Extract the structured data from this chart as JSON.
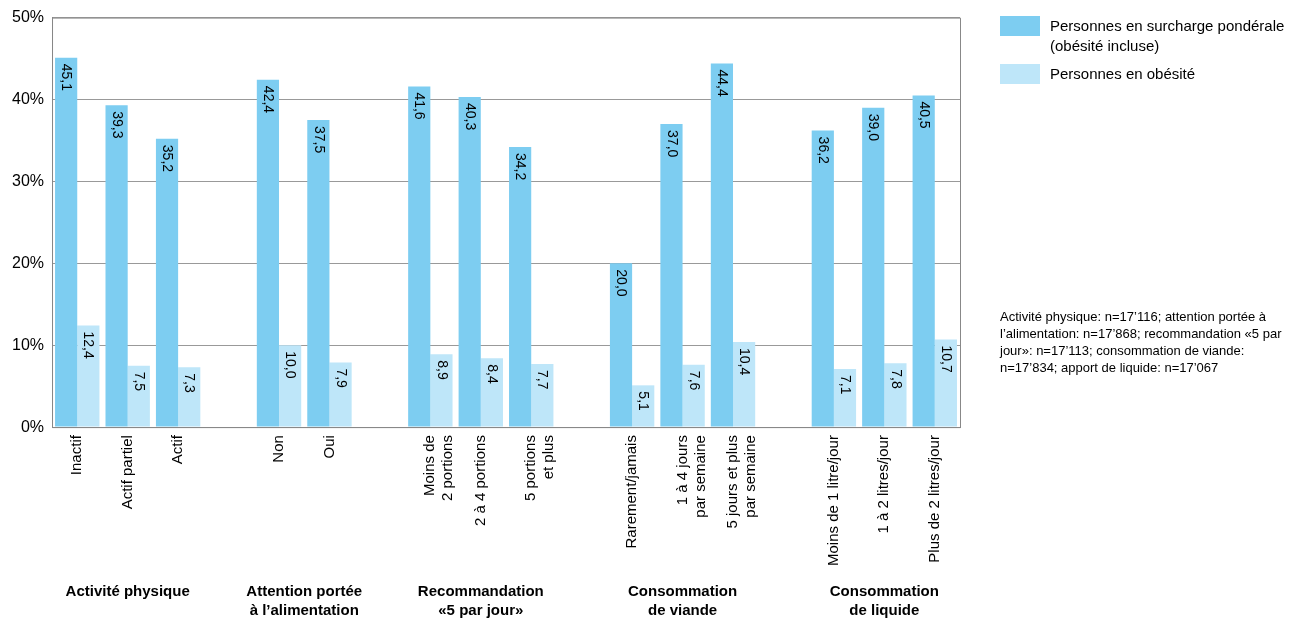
{
  "chart_data": {
    "type": "bar",
    "categories": [
      "Inactif",
      "Actif partiel",
      "Actif",
      null,
      "Non",
      "Oui",
      null,
      "Moins de\n2 portions",
      "2 à 4 portions",
      "5 portions\net plus",
      null,
      "Rarement/jamais",
      "1 à 4 jours\npar semaine",
      "5 jours et plus\npar semaine",
      null,
      "Moins de 1 litre/jour",
      "1 à 2 litres/jour",
      "Plus de 2 litres/jour"
    ],
    "series": [
      {
        "name": "Personnes en surcharge pondérale (obésité incluse)",
        "color": "#7dcdf1",
        "values": [
          45.1,
          39.3,
          35.2,
          null,
          42.4,
          37.5,
          null,
          41.6,
          40.3,
          34.2,
          null,
          20.0,
          37.0,
          44.4,
          null,
          36.2,
          39.0,
          40.5
        ],
        "value_labels": [
          "45,1",
          "39,3",
          "35,2",
          null,
          "42,4",
          "37,5",
          null,
          "41,6",
          "40,3",
          "34,2",
          null,
          "20,0",
          "37,0",
          "44,4",
          null,
          "36,2",
          "39,0",
          "40,5"
        ]
      },
      {
        "name": "Personnes en obésité",
        "color": "#bee6f9",
        "values": [
          12.4,
          7.5,
          7.3,
          null,
          10.0,
          7.9,
          null,
          8.9,
          8.4,
          7.7,
          null,
          5.1,
          7.6,
          10.4,
          null,
          7.1,
          7.8,
          10.7
        ],
        "value_labels": [
          "12,4",
          "7,5",
          "7,3",
          null,
          "10,0",
          "7,9",
          null,
          "8,9",
          "8,4",
          "7,7",
          null,
          "5,1",
          "7,6",
          "10,4",
          null,
          "7,1",
          "7,8",
          "10,7"
        ]
      }
    ],
    "ylim": [
      0,
      50
    ],
    "yticks": [
      {
        "value": 0,
        "label": "0%"
      },
      {
        "value": 10,
        "label": "10%"
      },
      {
        "value": 20,
        "label": "20%"
      },
      {
        "value": 30,
        "label": "30%"
      },
      {
        "value": 40,
        "label": "40%"
      },
      {
        "value": 50,
        "label": "50%"
      }
    ],
    "grid": "y",
    "legend": "top right",
    "annotations": [
      "Activité physique",
      "Attention portée\nà l’alimentation",
      "Recommandation\n«5 par jour»",
      "Consommation\nde viande",
      "Consommation\nde liquide",
      "Activité physique: n=17’116; attention portée à l’alimentation: n=17’868; recommandation «5 par jour»: n=17’113; consommation de viande: n=17’834; apport de liquide: n=17’067"
    ]
  }
}
